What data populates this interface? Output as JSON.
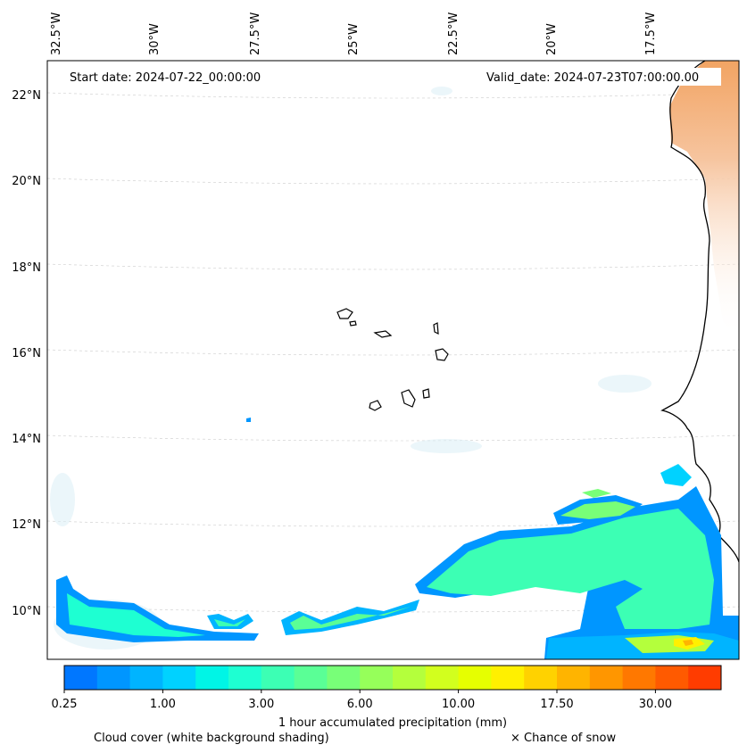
{
  "chart_data": {
    "type": "heatmap",
    "annotations": {
      "start_date": "Start date: 2024-07-22_00:00:00",
      "valid_date": "Valid_date: 2024-07-23T07:00:00.00"
    },
    "lon_ticks": [
      "32.5°W",
      "30°W",
      "27.5°W",
      "25°W",
      "22.5°W",
      "20°W",
      "17.5°W"
    ],
    "lon_values": [
      -32.5,
      -30,
      -27.5,
      -25,
      -22.5,
      -20,
      -17.5
    ],
    "lat_ticks": [
      "22°N",
      "20°N",
      "18°N",
      "16°N",
      "14°N",
      "12°N",
      "10°N"
    ],
    "lat_values": [
      22,
      20,
      18,
      16,
      14,
      12,
      10
    ],
    "xlim": [
      -32.6,
      -15.2
    ],
    "ylim": [
      8.9,
      22.8
    ],
    "grid": true,
    "colorbar": {
      "label": "1 hour accumulated precipitation (mm)",
      "tick_labels": [
        "0.25",
        "1.00",
        "3.00",
        "6.00",
        "10.00",
        "17.50",
        "30.00"
      ],
      "colors": [
        "#0077ff",
        "#0096ff",
        "#00b4ff",
        "#00d2ff",
        "#00f5e6",
        "#1effd2",
        "#3cffb4",
        "#5aff96",
        "#78ff78",
        "#96ff5a",
        "#b4ff3c",
        "#d2ff1e",
        "#e6ff00",
        "#fff000",
        "#ffd200",
        "#ffb400",
        "#ff9600",
        "#ff7800",
        "#ff5a00",
        "#ff3c00"
      ]
    },
    "legend_notes": {
      "cloud": "Cloud cover (white background shading)",
      "snow": "× Chance of snow"
    }
  }
}
